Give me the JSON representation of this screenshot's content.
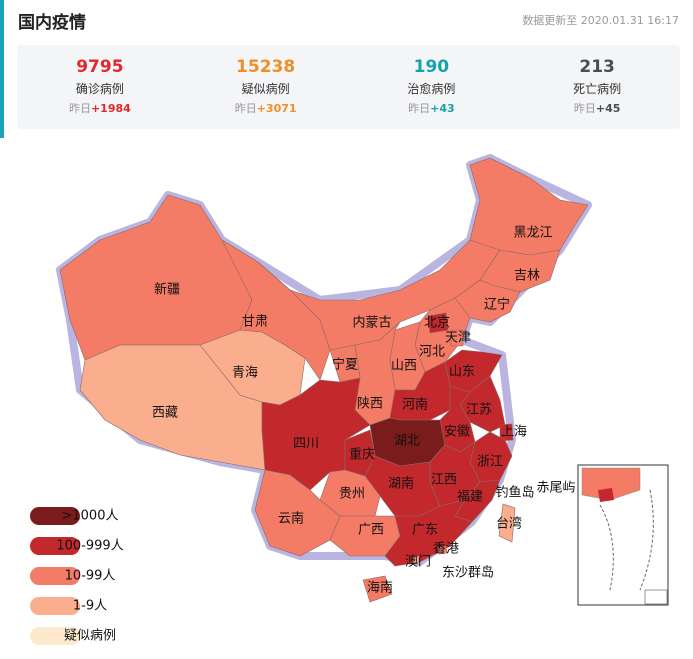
{
  "header": {
    "title": "国内疫情",
    "updated": "数据更新至 2020.01.31 16:17"
  },
  "stats": [
    {
      "value": "9795",
      "label": "确诊病例",
      "yesterday": "昨日",
      "delta": "+1984",
      "color": "#e0282d"
    },
    {
      "value": "15238",
      "label": "疑似病例",
      "yesterday": "昨日",
      "delta": "+3071",
      "color": "#ef8f2a"
    },
    {
      "value": "190",
      "label": "治愈病例",
      "yesterday": "昨日",
      "delta": "+43",
      "color": "#16a2ad"
    },
    {
      "value": "213",
      "label": "死亡病例",
      "yesterday": "昨日",
      "delta": "+45",
      "color": "#4a4d55"
    }
  ],
  "legend": [
    {
      "label": ">1000人",
      "color": "#7b1c1c"
    },
    {
      "label": "100-999人",
      "color": "#c2282c"
    },
    {
      "label": "10-99人",
      "color": "#f47b65"
    },
    {
      "label": "1-9人",
      "color": "#fbae8d"
    },
    {
      "label": "疑似病例",
      "color": "#fde9cb"
    }
  ],
  "provinces": [
    {
      "name": "新疆",
      "level": 2
    },
    {
      "name": "西藏",
      "level": 3
    },
    {
      "name": "青海",
      "level": 3
    },
    {
      "name": "甘肃",
      "level": 2
    },
    {
      "name": "内蒙古",
      "level": 2
    },
    {
      "name": "黑龙江",
      "level": 2
    },
    {
      "name": "吉林",
      "level": 2
    },
    {
      "name": "辽宁",
      "level": 2
    },
    {
      "name": "河北",
      "level": 2
    },
    {
      "name": "北京",
      "level": 1
    },
    {
      "name": "天津",
      "level": 2
    },
    {
      "name": "山西",
      "level": 2
    },
    {
      "name": "宁夏",
      "level": 2
    },
    {
      "name": "陕西",
      "level": 2
    },
    {
      "name": "山东",
      "level": 1
    },
    {
      "name": "河南",
      "level": 1
    },
    {
      "name": "江苏",
      "level": 1
    },
    {
      "name": "安徽",
      "level": 1
    },
    {
      "name": "上海",
      "level": 1
    },
    {
      "name": "湖北",
      "level": 0
    },
    {
      "name": "四川",
      "level": 1
    },
    {
      "name": "重庆",
      "level": 1
    },
    {
      "name": "浙江",
      "level": 1
    },
    {
      "name": "江西",
      "level": 1
    },
    {
      "name": "湖南",
      "level": 1
    },
    {
      "name": "贵州",
      "level": 2
    },
    {
      "name": "福建",
      "level": 1
    },
    {
      "name": "云南",
      "level": 2
    },
    {
      "name": "广西",
      "level": 2
    },
    {
      "name": "广东",
      "level": 1
    },
    {
      "name": "海南",
      "level": 2
    },
    {
      "name": "台湾",
      "level": 3
    },
    {
      "name": "香港",
      "level": 2
    },
    {
      "name": "澳门",
      "level": 3
    }
  ],
  "islands": [
    "钓鱼岛",
    "赤尾屿",
    "东沙群岛"
  ]
}
